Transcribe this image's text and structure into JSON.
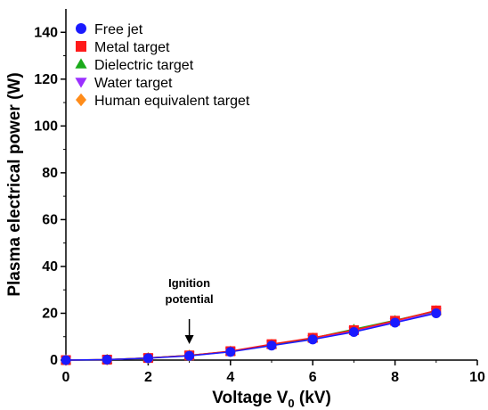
{
  "chart_data": {
    "type": "line",
    "xlabel": "Voltage V",
    "xlabel_subscript": "0",
    "xlabel_unit": "(kV)",
    "ylabel": "Plasma electrical power (W)",
    "xlim": [
      0,
      10
    ],
    "ylim": [
      0,
      150
    ],
    "xticks": [
      "0",
      "2",
      "4",
      "6",
      "8",
      "10"
    ],
    "yticks": [
      "0",
      "20",
      "40",
      "60",
      "80",
      "100",
      "120",
      "140"
    ],
    "x": [
      0,
      1,
      2,
      3,
      4,
      5,
      6,
      7,
      8,
      9
    ],
    "legend_position": "top-left",
    "series": [
      {
        "name": "Free jet",
        "marker": "circle",
        "color": "#1a1aff",
        "values": [
          0,
          0.2,
          0.8,
          1.8,
          3.5,
          6.2,
          8.8,
          12.0,
          16.0,
          20.0
        ]
      },
      {
        "name": "Metal target",
        "marker": "square",
        "color": "#ff1a1a",
        "values": [
          0,
          0.2,
          0.9,
          2.0,
          3.8,
          6.8,
          9.5,
          12.8,
          16.8,
          21.2
        ]
      },
      {
        "name": "Dielectric target",
        "marker": "triangle-up",
        "color": "#1aaa1a",
        "values": [
          0,
          0.2,
          0.9,
          2.0,
          3.7,
          6.6,
          9.4,
          13.2,
          17.0,
          21.0
        ]
      },
      {
        "name": "Water target",
        "marker": "triangle-down",
        "color": "#9b30ff",
        "values": [
          0,
          0.2,
          0.9,
          1.9,
          3.6,
          6.5,
          9.0,
          12.5,
          16.2,
          20.5
        ]
      },
      {
        "name": "Human equivalent target",
        "marker": "diamond",
        "color": "#ff8c1a",
        "values": [
          0,
          0.2,
          0.9,
          2.0,
          3.7,
          6.6,
          9.3,
          12.9,
          16.6,
          21.0
        ]
      }
    ],
    "annotation": {
      "lines": [
        "Ignition",
        "potential"
      ],
      "x": 3,
      "y": 1.8
    }
  }
}
